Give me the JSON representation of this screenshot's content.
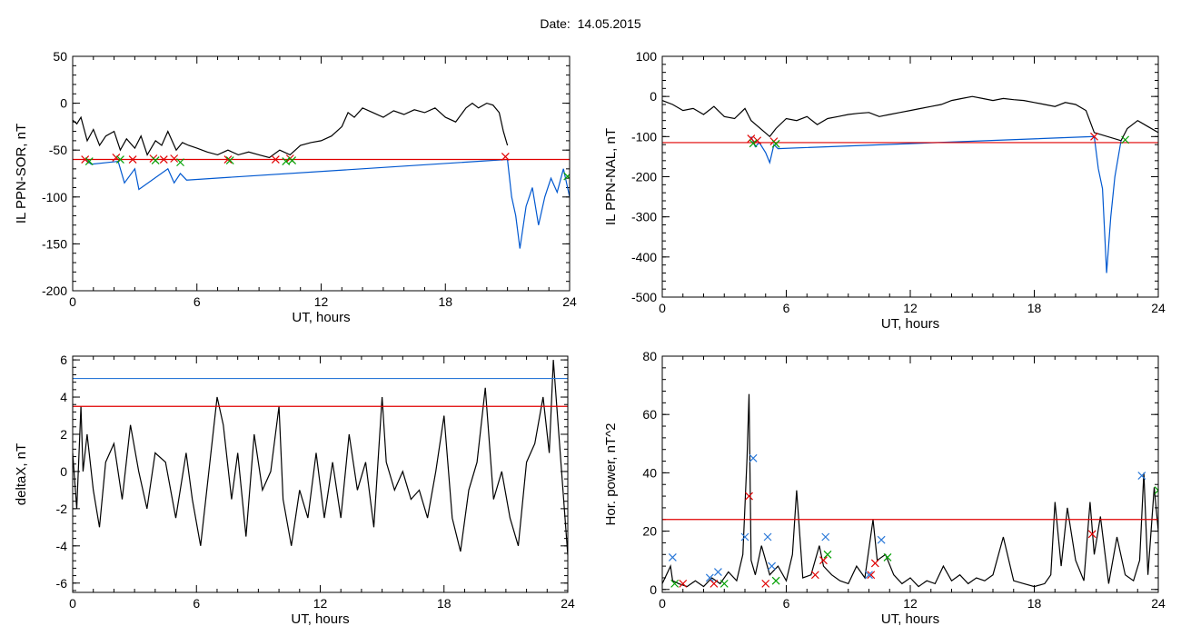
{
  "header": {
    "date_label": "Date:",
    "date_value": "14.05.2015"
  },
  "chart_data": [
    {
      "id": "p1",
      "type": "line",
      "ylabel": "IL PPN-SOR, nT",
      "xlabel": "UT, hours",
      "xlim": [
        0,
        24
      ],
      "ylim": [
        -200,
        50
      ],
      "xticks": [
        0,
        6,
        12,
        18,
        24
      ],
      "yticks": [
        50,
        0,
        -50,
        -100,
        -150,
        -200
      ],
      "grid": false,
      "threshold": {
        "value": -60,
        "color": "#e00000"
      },
      "series": [
        {
          "color": "#000000",
          "x": [
            0,
            0.2,
            0.4,
            0.7,
            1.0,
            1.3,
            1.6,
            2.0,
            2.3,
            2.6,
            3.0,
            3.3,
            3.6,
            4.0,
            4.3,
            4.6,
            5.0,
            5.3,
            5.6,
            6.0,
            6.5,
            7.0,
            7.5,
            8.0,
            8.5,
            9.0,
            9.5,
            10.0,
            10.5,
            11.0,
            11.5,
            12.0,
            12.5,
            13.0,
            13.3,
            13.6,
            14.0,
            14.5,
            15.0,
            15.5,
            16.0,
            16.5,
            17.0,
            17.5,
            18.0,
            18.5,
            19.0,
            19.3,
            19.6,
            20.0,
            20.3,
            20.6,
            20.8,
            21.0
          ],
          "y": [
            -18,
            -22,
            -15,
            -40,
            -28,
            -45,
            -35,
            -30,
            -50,
            -38,
            -48,
            -35,
            -55,
            -40,
            -45,
            -30,
            -50,
            -42,
            -45,
            -48,
            -52,
            -55,
            -50,
            -55,
            -52,
            -55,
            -58,
            -50,
            -55,
            -45,
            -42,
            -40,
            -35,
            -25,
            -10,
            -15,
            -5,
            -10,
            -15,
            -8,
            -12,
            -7,
            -10,
            -5,
            -15,
            -20,
            -5,
            0,
            -5,
            0,
            -2,
            -10,
            -30,
            -45
          ]
        },
        {
          "color": "#0058d0",
          "x": [
            0.6,
            0.9,
            2.2,
            2.5,
            3.0,
            3.2,
            4.6,
            4.9,
            5.2,
            5.5,
            21.0,
            21.2,
            21.4,
            21.6,
            21.9,
            22.2,
            22.5,
            22.8,
            23.1,
            23.4,
            23.7,
            24.0
          ],
          "y": [
            -60,
            -65,
            -62,
            -85,
            -70,
            -92,
            -70,
            -85,
            -75,
            -82,
            -60,
            -100,
            -120,
            -155,
            -110,
            -90,
            -130,
            -100,
            -80,
            -95,
            -70,
            -100
          ]
        }
      ],
      "markers": {
        "red_x": [
          [
            0.6,
            -60
          ],
          [
            2.1,
            -58
          ],
          [
            2.9,
            -60
          ],
          [
            3.9,
            -59
          ],
          [
            4.4,
            -60
          ],
          [
            4.9,
            -59
          ],
          [
            7.5,
            -60
          ],
          [
            9.8,
            -60
          ],
          [
            10.5,
            -59
          ],
          [
            20.9,
            -57
          ]
        ],
        "green_x": [
          [
            0.8,
            -62
          ],
          [
            2.3,
            -60
          ],
          [
            4.0,
            -61
          ],
          [
            5.2,
            -63
          ],
          [
            7.6,
            -61
          ],
          [
            10.3,
            -62
          ],
          [
            10.6,
            -61
          ],
          [
            23.9,
            -78
          ]
        ]
      }
    },
    {
      "id": "p2",
      "type": "line",
      "ylabel": "IL PPN-NAL, nT",
      "xlabel": "UT, hours",
      "xlim": [
        0,
        24
      ],
      "ylim": [
        -500,
        100
      ],
      "xticks": [
        0,
        6,
        12,
        18,
        24
      ],
      "yticks": [
        100,
        0,
        -100,
        -200,
        -300,
        -400,
        -500
      ],
      "grid": false,
      "threshold": {
        "value": -115,
        "color": "#e00000"
      },
      "series": [
        {
          "color": "#000000",
          "x": [
            0,
            0.5,
            1.0,
            1.5,
            2.0,
            2.5,
            3.0,
            3.5,
            4.0,
            4.3,
            5.2,
            5.5,
            6.0,
            6.5,
            7.0,
            7.5,
            8.0,
            8.5,
            9.0,
            9.5,
            10.0,
            10.5,
            11.0,
            11.5,
            12.0,
            12.5,
            13.0,
            13.5,
            14.0,
            14.5,
            15.0,
            15.5,
            16.0,
            16.5,
            17.0,
            17.5,
            18.0,
            18.5,
            19.0,
            19.5,
            20.0,
            20.5,
            20.9,
            22.2,
            22.5,
            23.0,
            23.5,
            24.0
          ],
          "y": [
            -10,
            -20,
            -35,
            -30,
            -45,
            -25,
            -50,
            -55,
            -30,
            -60,
            -100,
            -80,
            -55,
            -60,
            -50,
            -70,
            -55,
            -50,
            -45,
            -42,
            -40,
            -50,
            -45,
            -40,
            -35,
            -30,
            -25,
            -20,
            -10,
            -5,
            0,
            -5,
            -10,
            -5,
            -8,
            -10,
            -15,
            -20,
            -25,
            -15,
            -20,
            -35,
            -90,
            -110,
            -80,
            -60,
            -75,
            -90
          ]
        },
        {
          "color": "#0058d0",
          "x": [
            4.3,
            4.5,
            4.7,
            5.0,
            5.2,
            5.4,
            5.6,
            20.9,
            21.1,
            21.3,
            21.5,
            21.7,
            21.9,
            22.2
          ],
          "y": [
            -100,
            -125,
            -115,
            -140,
            -165,
            -120,
            -130,
            -100,
            -180,
            -230,
            -440,
            -300,
            -200,
            -110
          ]
        }
      ],
      "markers": {
        "red_x": [
          [
            4.3,
            -105
          ],
          [
            4.6,
            -110
          ],
          [
            5.4,
            -112
          ],
          [
            20.9,
            -100
          ]
        ],
        "green_x": [
          [
            4.4,
            -117
          ],
          [
            5.5,
            -118
          ],
          [
            22.4,
            -108
          ]
        ]
      }
    },
    {
      "id": "p3",
      "type": "line",
      "ylabel": "deltaX, nT",
      "xlabel": "UT, hours",
      "xlim": [
        0,
        24
      ],
      "ylim": [
        -6.5,
        6.2
      ],
      "xticks": [
        0,
        6,
        12,
        18,
        24
      ],
      "yticks": [
        6,
        4,
        2,
        0,
        -2,
        -4,
        -6
      ],
      "grid": false,
      "threshold": {
        "value": 3.5,
        "color": "#e00000"
      },
      "threshold2": {
        "value": 5.0,
        "color": "#2a78d8"
      },
      "series": [
        {
          "color": "#000000",
          "x": [
            0,
            0.2,
            0.4,
            0.5,
            0.7,
            1.0,
            1.3,
            1.6,
            2.0,
            2.4,
            2.8,
            3.2,
            3.6,
            4.0,
            4.5,
            5.0,
            5.5,
            5.8,
            6.2,
            6.6,
            7.0,
            7.3,
            7.7,
            8.0,
            8.4,
            8.8,
            9.2,
            9.6,
            10.0,
            10.2,
            10.6,
            11.0,
            11.4,
            11.8,
            12.2,
            12.6,
            13.0,
            13.4,
            13.8,
            14.2,
            14.6,
            15.0,
            15.2,
            15.6,
            16.0,
            16.4,
            16.8,
            17.2,
            17.6,
            18.0,
            18.4,
            18.8,
            19.2,
            19.6,
            20.0,
            20.4,
            20.8,
            21.2,
            21.6,
            22.0,
            22.4,
            22.8,
            23.1,
            23.3,
            23.6,
            24.0
          ],
          "y": [
            1.0,
            -2.0,
            3.5,
            0.0,
            2.0,
            -1.0,
            -3.0,
            0.5,
            1.5,
            -1.5,
            2.5,
            0.0,
            -2.0,
            1.0,
            0.5,
            -2.5,
            1.0,
            -1.5,
            -4.0,
            0.0,
            4.0,
            2.5,
            -1.5,
            1.0,
            -3.5,
            2.0,
            -1.0,
            0.0,
            3.5,
            -1.5,
            -4.0,
            -1.0,
            -2.5,
            1.0,
            -2.5,
            0.5,
            -2.5,
            2.0,
            -1.0,
            0.5,
            -3.0,
            4.0,
            0.5,
            -1.0,
            0.0,
            -1.5,
            -1.0,
            -2.5,
            0.0,
            3.0,
            -2.5,
            -4.3,
            -1.0,
            0.5,
            4.5,
            -1.5,
            0.0,
            -2.5,
            -4.0,
            0.5,
            1.5,
            4.0,
            1.0,
            6.0,
            1.5,
            -4.5
          ]
        }
      ],
      "markers": {
        "red_x": [],
        "green_x": []
      }
    },
    {
      "id": "p4",
      "type": "line",
      "ylabel": "Hor. power, nT^2",
      "xlabel": "UT, hours",
      "xlim": [
        0,
        24
      ],
      "ylim": [
        -1,
        80
      ],
      "xticks": [
        0,
        6,
        12,
        18,
        24
      ],
      "yticks": [
        80,
        60,
        40,
        20,
        0
      ],
      "grid": false,
      "threshold": {
        "value": 24,
        "color": "#e00000"
      },
      "series": [
        {
          "color": "#000000",
          "x": [
            0,
            0.4,
            0.5,
            0.8,
            1.2,
            1.6,
            2.0,
            2.4,
            2.8,
            3.2,
            3.6,
            3.9,
            4.1,
            4.2,
            4.3,
            4.5,
            4.8,
            5.2,
            5.6,
            6.0,
            6.3,
            6.5,
            6.8,
            7.2,
            7.6,
            7.8,
            8.2,
            8.6,
            9.0,
            9.4,
            9.8,
            10.2,
            10.4,
            10.8,
            11.2,
            11.6,
            12.0,
            12.4,
            12.8,
            13.2,
            13.6,
            14.0,
            14.4,
            14.8,
            15.2,
            15.6,
            16.0,
            16.5,
            17.0,
            17.5,
            18.0,
            18.5,
            18.8,
            19.0,
            19.3,
            19.6,
            20.0,
            20.4,
            20.7,
            20.9,
            21.2,
            21.6,
            22.0,
            22.4,
            22.8,
            23.1,
            23.3,
            23.5,
            23.8,
            24.0
          ],
          "y": [
            2,
            8,
            3,
            2,
            1,
            3,
            1,
            4,
            2,
            6,
            3,
            12,
            45,
            67,
            10,
            5,
            15,
            5,
            8,
            3,
            12,
            34,
            4,
            5,
            15,
            8,
            5,
            3,
            2,
            8,
            4,
            24,
            10,
            12,
            5,
            2,
            4,
            1,
            3,
            2,
            8,
            3,
            5,
            2,
            4,
            3,
            5,
            18,
            3,
            2,
            1,
            2,
            5,
            30,
            8,
            28,
            10,
            3,
            30,
            12,
            25,
            2,
            18,
            5,
            3,
            10,
            40,
            5,
            35,
            20
          ]
        }
      ],
      "markers": {
        "red_x": [
          [
            1.0,
            2
          ],
          [
            2.5,
            2
          ],
          [
            4.2,
            32
          ],
          [
            5.0,
            2
          ],
          [
            7.4,
            5
          ],
          [
            7.8,
            10
          ],
          [
            10.1,
            5
          ],
          [
            10.3,
            9
          ],
          [
            20.8,
            19
          ]
        ],
        "blue_x": [
          [
            0.5,
            11
          ],
          [
            2.3,
            4
          ],
          [
            2.7,
            6
          ],
          [
            4.0,
            18
          ],
          [
            4.4,
            45
          ],
          [
            5.1,
            18
          ],
          [
            5.3,
            8
          ],
          [
            7.9,
            18
          ],
          [
            10.0,
            5
          ],
          [
            10.6,
            17
          ],
          [
            23.2,
            39
          ]
        ],
        "green_x": [
          [
            0.6,
            2
          ],
          [
            3.0,
            2
          ],
          [
            5.5,
            3
          ],
          [
            8.0,
            12
          ],
          [
            10.9,
            11
          ],
          [
            24.0,
            34
          ]
        ]
      }
    }
  ]
}
